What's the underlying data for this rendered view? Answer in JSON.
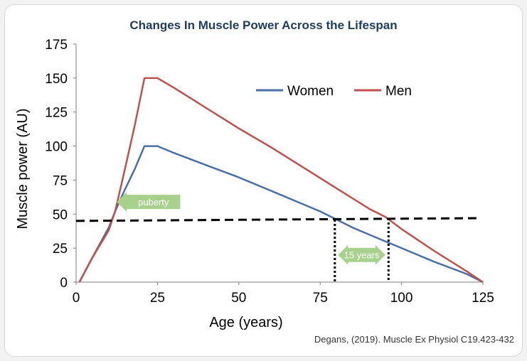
{
  "source_note": "Degans, (2019). Muscle Ex Physiol C19.423-432",
  "colors": {
    "women": "#4a6fa5",
    "men": "#c0504d",
    "annotation": "#a9d18e",
    "threshold": "#000000"
  },
  "chart_data": {
    "type": "line",
    "title": "Changes In Muscle Power Across the Lifespan",
    "xlabel": "Age (years)",
    "ylabel": "Muscle power  (AU)",
    "xlim": [
      0,
      125
    ],
    "ylim": [
      0,
      175
    ],
    "xticks": [
      0,
      25,
      50,
      75,
      100,
      125
    ],
    "yticks": [
      0,
      25,
      50,
      75,
      100,
      125,
      150,
      175
    ],
    "legend_position": "top-right",
    "grid": false,
    "series": [
      {
        "name": "Women",
        "color": "#4a6fa5",
        "points": [
          [
            1,
            0
          ],
          [
            5,
            18
          ],
          [
            10,
            40
          ],
          [
            12,
            52
          ],
          [
            15,
            68
          ],
          [
            18,
            83
          ],
          [
            21,
            100
          ],
          [
            25,
            100
          ],
          [
            30,
            95
          ],
          [
            40,
            86
          ],
          [
            50,
            77
          ],
          [
            60,
            67
          ],
          [
            70,
            57
          ],
          [
            75,
            52
          ],
          [
            80,
            46
          ],
          [
            85,
            40
          ],
          [
            90,
            35
          ],
          [
            95,
            30
          ],
          [
            100,
            25
          ],
          [
            110,
            15
          ],
          [
            120,
            6
          ],
          [
            125,
            0
          ]
        ]
      },
      {
        "name": "Men",
        "color": "#c0504d",
        "points": [
          [
            1,
            0
          ],
          [
            5,
            18
          ],
          [
            10,
            38
          ],
          [
            12,
            52
          ],
          [
            15,
            83
          ],
          [
            18,
            115
          ],
          [
            21,
            150
          ],
          [
            25,
            150
          ],
          [
            30,
            143
          ],
          [
            40,
            128
          ],
          [
            50,
            113
          ],
          [
            60,
            99
          ],
          [
            70,
            84
          ],
          [
            80,
            69
          ],
          [
            90,
            54
          ],
          [
            95,
            48
          ],
          [
            100,
            39
          ],
          [
            110,
            23
          ],
          [
            120,
            8
          ],
          [
            125,
            0
          ]
        ]
      }
    ],
    "reference_line": {
      "y_start": 45,
      "y_end": 47,
      "x_start": 0,
      "x_end": 123
    },
    "vlines": [
      {
        "x": 79.5,
        "y_top": 46
      },
      {
        "x": 96,
        "y_top": 47
      }
    ],
    "annotations": [
      {
        "text": "puberty",
        "x_from": 12.5,
        "x_to": 32,
        "y": 59,
        "direction": "left"
      },
      {
        "text": "15 years",
        "x_from": 80.5,
        "x_to": 95,
        "y": 20,
        "direction": "both"
      }
    ]
  }
}
